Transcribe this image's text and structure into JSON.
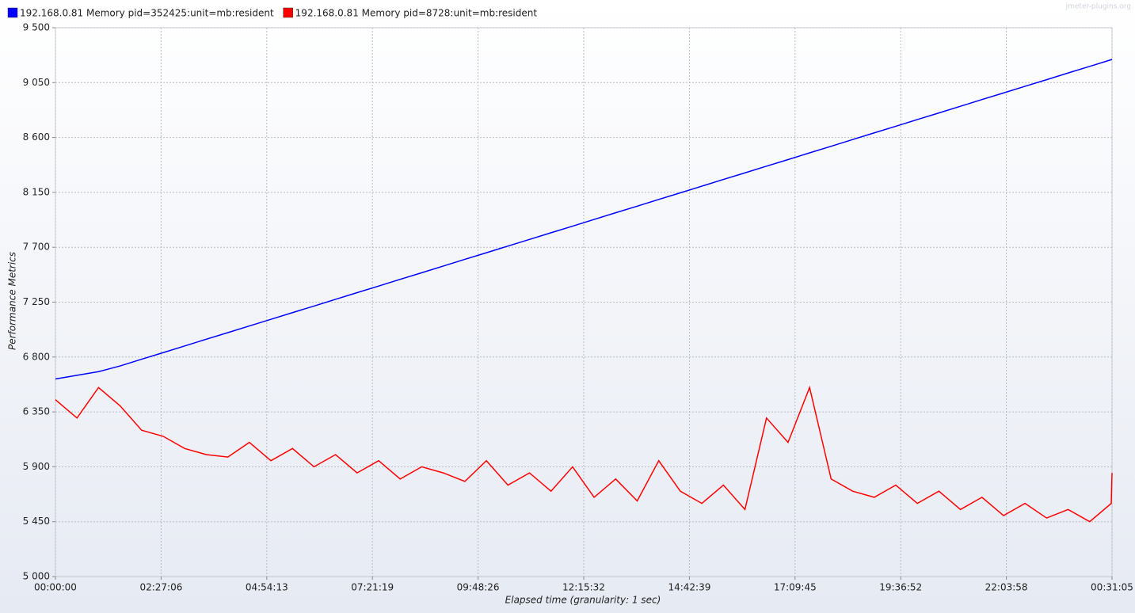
{
  "chart_data": {
    "type": "line",
    "watermark": "jmeter-plugins.org",
    "xlabel": "Elapsed time (granularity: 1 sec)",
    "ylabel": "Performance Metrics",
    "x": [
      0,
      1800,
      3600,
      5400,
      7200,
      9000,
      10800,
      12600,
      14400,
      16200,
      18000,
      19800,
      21600,
      23400,
      25200,
      27000,
      28800,
      30600,
      32400,
      34200,
      36000,
      37800,
      39600,
      41400,
      43200,
      45000,
      46800,
      48600,
      50400,
      52200,
      54000,
      55800,
      57600,
      59400,
      61200,
      63000,
      64800,
      66600,
      68400,
      70200,
      72000,
      73800,
      75600,
      77400,
      79200,
      81000,
      82800,
      84600,
      86400,
      88200,
      88265
    ],
    "series": [
      {
        "name": "192.168.0.81 Memory pid=352425:unit=mb:resident",
        "color": "#0000ff",
        "values": [
          6620,
          6650,
          6680,
          6727,
          6782,
          6836,
          6891,
          6946,
          7000,
          7055,
          7109,
          7164,
          7218,
          7273,
          7328,
          7382,
          7437,
          7491,
          7546,
          7601,
          7655,
          7710,
          7764,
          7819,
          7873,
          7928,
          7983,
          8037,
          8092,
          8146,
          8201,
          8256,
          8310,
          8365,
          8419,
          8474,
          8528,
          8583,
          8638,
          8692,
          8747,
          8801,
          8856,
          8911,
          8965,
          9020,
          9074,
          9129,
          9183,
          9238,
          9240
        ]
      },
      {
        "name": "192.168.0.81 Memory pid=8728:unit=mb:resident",
        "color": "#ff0000",
        "values": [
          6450,
          6300,
          6550,
          6400,
          6200,
          6150,
          6050,
          6000,
          5980,
          6100,
          5950,
          6050,
          5900,
          6000,
          5850,
          5950,
          5800,
          5900,
          5850,
          5780,
          5950,
          5750,
          5850,
          5700,
          5900,
          5650,
          5800,
          5620,
          5950,
          5700,
          5600,
          5750,
          5550,
          6300,
          6100,
          6550,
          5800,
          5700,
          5650,
          5750,
          5600,
          5700,
          5550,
          5650,
          5500,
          5600,
          5480,
          5550,
          5450,
          5600,
          5850
        ]
      }
    ],
    "xlim": [
      0,
      88265
    ],
    "xticks": [
      {
        "value": 0,
        "label": "00:00:00"
      },
      {
        "value": 8826,
        "label": "02:27:06"
      },
      {
        "value": 17653,
        "label": "04:54:13"
      },
      {
        "value": 26479,
        "label": "07:21:19"
      },
      {
        "value": 35306,
        "label": "09:48:26"
      },
      {
        "value": 44132,
        "label": "12:15:32"
      },
      {
        "value": 52959,
        "label": "14:42:39"
      },
      {
        "value": 61785,
        "label": "17:09:45"
      },
      {
        "value": 70612,
        "label": "19:36:52"
      },
      {
        "value": 79438,
        "label": "22:03:58"
      },
      {
        "value": 88265,
        "label": "00:31:05"
      }
    ],
    "ylim": [
      5000,
      9500
    ],
    "yticks": [
      {
        "value": 5000,
        "label": "5 000"
      },
      {
        "value": 5450,
        "label": "5 450"
      },
      {
        "value": 5900,
        "label": "5 900"
      },
      {
        "value": 6350,
        "label": "6 350"
      },
      {
        "value": 6800,
        "label": "6 800"
      },
      {
        "value": 7250,
        "label": "7 250"
      },
      {
        "value": 7700,
        "label": "7 700"
      },
      {
        "value": 8150,
        "label": "8 150"
      },
      {
        "value": 8600,
        "label": "8 600"
      },
      {
        "value": 9050,
        "label": "9 050"
      },
      {
        "value": 9500,
        "label": "9 500"
      }
    ],
    "grid": true
  }
}
